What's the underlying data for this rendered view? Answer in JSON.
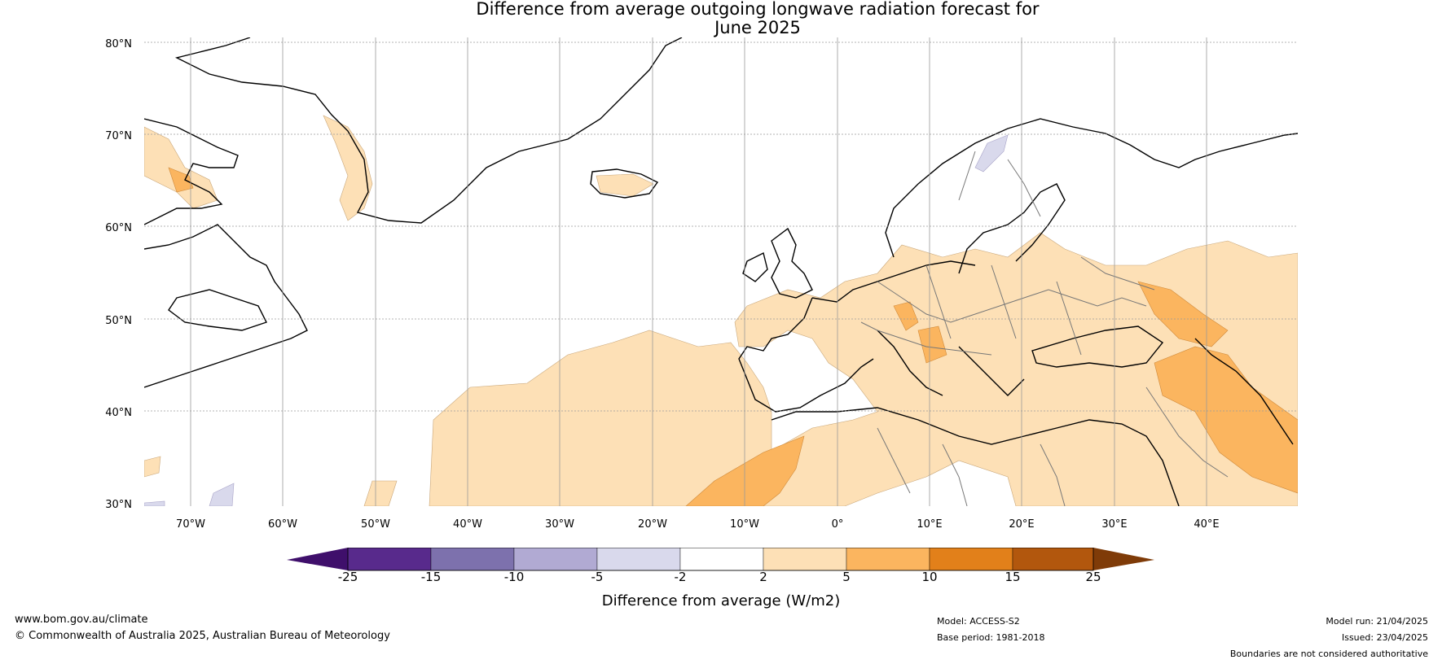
{
  "title": {
    "line1": "Difference from average outgoing longwave radiation forecast for",
    "line2": "June 2025"
  },
  "lat_labels": [
    "80°N",
    "70°N",
    "60°N",
    "50°N",
    "40°N",
    "30°N"
  ],
  "lon_labels": [
    "70°W",
    "60°W",
    "50°W",
    "40°W",
    "30°W",
    "20°W",
    "10°W",
    "0°",
    "10°E",
    "20°E",
    "30°E",
    "40°E"
  ],
  "colorbar": {
    "title": "Difference from average (W/m2)",
    "tick_labels": [
      "-25",
      "-15",
      "-10",
      "-5",
      "-2",
      "2",
      "5",
      "10",
      "15",
      "25"
    ],
    "colors": [
      "#3f0f6b",
      "#582a8c",
      "#7d71ad",
      "#b1aad3",
      "#d9d9ec",
      "#ffffff",
      "#fde0b6",
      "#fbb55f",
      "#e2801a",
      "#b2570d",
      "#7f3b08"
    ]
  },
  "footer": {
    "url": "www.bom.gov.au/climate",
    "copyright": "© Commonwealth of Australia 2025, Australian Bureau of Meteorology",
    "model": "Model: ACCESS-S2",
    "base_period": "Base period: 1981-2018",
    "model_run": "Model run: 21/04/2025",
    "issued": "Issued: 23/04/2025",
    "disclaimer": "Boundaries are not considered authoritative"
  }
}
